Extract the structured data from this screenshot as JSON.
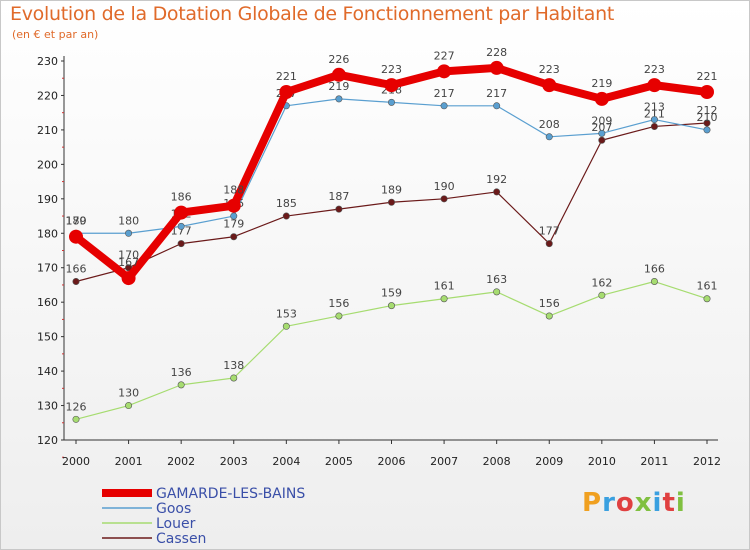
{
  "title": "Evolution de la Dotation Globale de Fonctionnement par Habitant",
  "subtitle": "(en € et par an)",
  "logo": {
    "text": "Proxiti",
    "colors": [
      "#f0a020",
      "#3aa0e0",
      "#e04040",
      "#80c040",
      "#3aa0e0",
      "#e04040",
      "#80c040"
    ]
  },
  "chart_data": {
    "type": "line",
    "x": [
      "2000",
      "2001",
      "2002",
      "2003",
      "2004",
      "2005",
      "2006",
      "2007",
      "2008",
      "2009",
      "2010",
      "2011",
      "2012"
    ],
    "ylim": [
      120,
      230
    ],
    "yticks": [
      120,
      130,
      140,
      150,
      160,
      170,
      180,
      190,
      200,
      210,
      220,
      230
    ],
    "grid": false,
    "legend_position": "bottom-left",
    "series": [
      {
        "name": "Cassen",
        "color": "#6b1a1a",
        "values": [
          166,
          170,
          177,
          179,
          185,
          187,
          189,
          190,
          192,
          177,
          207,
          211,
          212
        ]
      },
      {
        "name": "Louer",
        "color": "#a6dc70",
        "values": [
          126,
          130,
          136,
          138,
          153,
          156,
          159,
          161,
          163,
          156,
          162,
          166,
          161
        ]
      },
      {
        "name": "Goos",
        "color": "#5a9fd0",
        "values": [
          180,
          180,
          182,
          185,
          217,
          219,
          218,
          217,
          217,
          208,
          209,
          213,
          210
        ]
      },
      {
        "name": "GAMARDE-LES-BAINS",
        "color": "#e60000",
        "values": [
          179,
          167,
          186,
          188,
          221,
          226,
          223,
          227,
          228,
          223,
          219,
          223,
          221
        ]
      }
    ]
  }
}
